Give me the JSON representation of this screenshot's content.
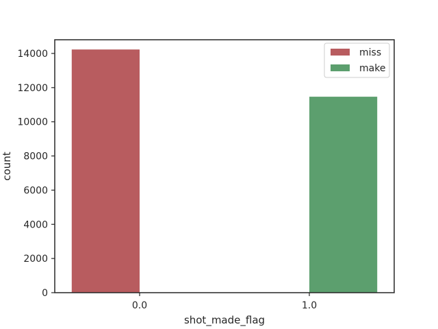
{
  "chart_data": {
    "type": "bar",
    "xlabel": "shot_made_flag",
    "ylabel": "count",
    "categories": [
      "0.0",
      "1.0"
    ],
    "ylim": [
      0,
      14800
    ],
    "yticks": [
      0,
      2000,
      4000,
      6000,
      8000,
      10000,
      12000,
      14000
    ],
    "series": [
      {
        "name": "miss",
        "color": "#b85c5f",
        "values": [
          14232,
          0
        ]
      },
      {
        "name": "make",
        "color": "#5c9f6e",
        "values": [
          0,
          11465
        ]
      }
    ],
    "legend_position": "top-right",
    "grid": false
  }
}
